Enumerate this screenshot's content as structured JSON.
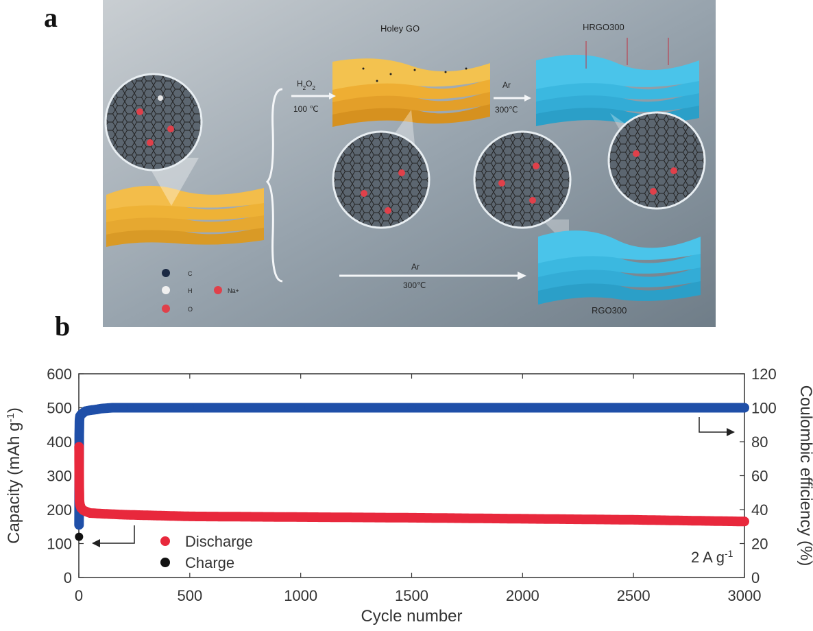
{
  "panel_labels": {
    "a": "a",
    "b": "b"
  },
  "schematic": {
    "holey_go_label": "Holey GO",
    "hrgo_label": "HRGO300",
    "rgo_label": "RGO300",
    "step1_top": "H2O2",
    "step1_bottom": "100 ℃",
    "step2_top": "Ar",
    "step2_bottom": "300℃",
    "step3_top": "Ar",
    "step3_bottom": "300℃",
    "legend": {
      "c": "C",
      "h": "H",
      "o": "O",
      "na": "Na+"
    },
    "colors": {
      "background": "#9aa6b0",
      "go_yellow": "#f2b43a",
      "rgo_blue": "#39b9e0"
    }
  },
  "chart_data": {
    "type": "scatter",
    "title": "",
    "xlabel": "Cycle number",
    "ylabel_left": "Capacity (mAh g-1)",
    "ylabel_right": "Coulombic efficiency (%)",
    "xlim": [
      0,
      3000
    ],
    "ylim_left": [
      0,
      600
    ],
    "ylim_right": [
      0,
      120
    ],
    "x_ticks": [
      0,
      500,
      1000,
      1500,
      2000,
      2500,
      3000
    ],
    "y_ticks_left": [
      0,
      100,
      200,
      300,
      400,
      500,
      600
    ],
    "y_ticks_right": [
      0,
      20,
      40,
      60,
      80,
      100,
      120
    ],
    "annotation": "2 A g-1",
    "legend": [
      {
        "name": "Discharge",
        "color": "#e8283c"
      },
      {
        "name": "Charge",
        "color": "#111111"
      }
    ],
    "series": [
      {
        "name": "Coulombic efficiency",
        "axis": "right",
        "color": "#1f4fa8",
        "x": [
          1,
          2,
          3,
          5,
          10,
          20,
          30,
          50,
          80,
          100,
          150,
          200,
          500,
          1000,
          1500,
          2000,
          2500,
          3000
        ],
        "y": [
          31,
          85,
          93,
          95,
          96,
          97,
          98,
          98.5,
          99,
          99.5,
          100,
          100,
          100,
          100,
          100,
          100,
          100,
          100
        ]
      },
      {
        "name": "Discharge",
        "axis": "left",
        "color": "#e8283c",
        "x": [
          1,
          2,
          3,
          5,
          10,
          20,
          30,
          50,
          100,
          200,
          500,
          1000,
          1500,
          2000,
          2500,
          3000
        ],
        "y": [
          385,
          265,
          225,
          215,
          205,
          198,
          195,
          190,
          188,
          185,
          180,
          178,
          176,
          173,
          170,
          165
        ]
      },
      {
        "name": "Charge",
        "axis": "left",
        "color": "#111111",
        "x": [
          1
        ],
        "y": [
          120
        ]
      }
    ],
    "arrows": [
      {
        "target_axis": "left",
        "points_to": "left"
      },
      {
        "target_axis": "right",
        "points_to": "right"
      }
    ]
  }
}
